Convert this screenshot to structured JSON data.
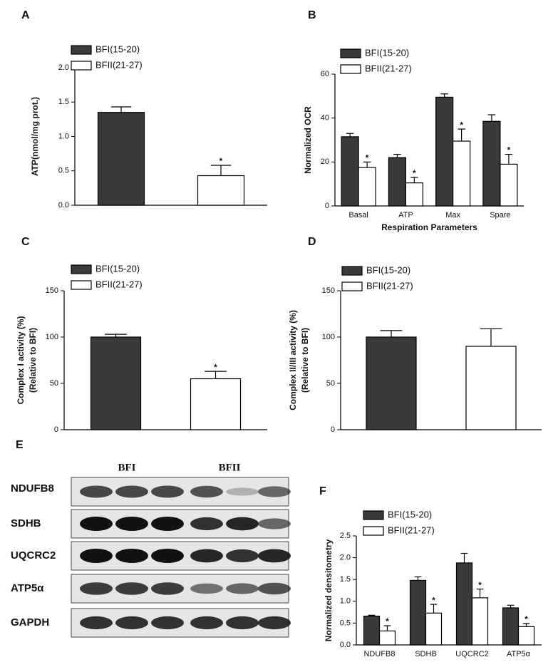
{
  "chart_data": [
    {
      "type": "bar",
      "panel": "A",
      "ylabel": [
        "ATP(nmol/mg prot.)"
      ],
      "categories": [
        null
      ],
      "series": [
        {
          "name": "BFI(15-20)",
          "color": "#3a3a3a",
          "values": [
            1.35
          ],
          "errors": [
            0.08
          ]
        },
        {
          "name": "BFII(21-27)",
          "color": "#ffffff",
          "values": [
            0.43
          ],
          "errors": [
            0.15
          ],
          "stars": [
            "*"
          ]
        }
      ],
      "ylim": [
        0,
        2.0
      ],
      "yticks": [
        {
          "value": 0,
          "label": "0.0"
        },
        0.5,
        {
          "value": 1,
          "label": "1.0"
        },
        1.5,
        {
          "value": 2,
          "label": "2.0"
        }
      ]
    },
    {
      "type": "bar",
      "panel": "B",
      "ylabel": [
        "Normalized OCR"
      ],
      "xlabel": "Respiration Parameters",
      "categories": [
        "Basal",
        "ATP",
        "Max",
        "Spare"
      ],
      "series": [
        {
          "name": "BFI(15-20)",
          "color": "#3a3a3a",
          "values": [
            31.5,
            22,
            49.5,
            38.5
          ],
          "errors": [
            1.5,
            1.5,
            1.5,
            3
          ]
        },
        {
          "name": "BFII(21-27)",
          "color": "#ffffff",
          "values": [
            17.5,
            10.5,
            29.5,
            19
          ],
          "errors": [
            2.5,
            2.5,
            5.5,
            4.5
          ],
          "stars": [
            "*",
            "*",
            "*",
            "*"
          ]
        }
      ],
      "ylim": [
        0,
        60
      ],
      "yticks": [
        0,
        20,
        40,
        60
      ]
    },
    {
      "type": "bar",
      "panel": "C",
      "ylabel": [
        "Complex I activity (%)",
        "(Relative to BFI)"
      ],
      "categories": [
        null
      ],
      "series": [
        {
          "name": "BFI(15-20)",
          "color": "#3a3a3a",
          "values": [
            100
          ],
          "errors": [
            3
          ]
        },
        {
          "name": "BFII(21-27)",
          "color": "#ffffff",
          "values": [
            55
          ],
          "errors": [
            8
          ],
          "stars": [
            "*"
          ]
        }
      ],
      "ylim": [
        0,
        150
      ],
      "yticks": [
        0,
        50,
        100,
        150
      ]
    },
    {
      "type": "bar",
      "panel": "D",
      "ylabel": [
        "Complex II/III activity (%)",
        "(Relative to BFI)"
      ],
      "categories": [
        null
      ],
      "series": [
        {
          "name": "BFI(15-20)",
          "color": "#3a3a3a",
          "values": [
            100
          ],
          "errors": [
            7
          ]
        },
        {
          "name": "BFII(21-27)",
          "color": "#ffffff",
          "values": [
            90
          ],
          "errors": [
            19
          ]
        }
      ],
      "ylim": [
        0,
        150
      ],
      "yticks": [
        0,
        50,
        100,
        150
      ]
    },
    {
      "type": "bar",
      "panel": "F",
      "ylabel": [
        "Normalized densitometry"
      ],
      "categories": [
        "NDUFB8",
        "SDHB",
        "UQCRC2",
        "ATP5α"
      ],
      "series": [
        {
          "name": "BFI(15-20)",
          "color": "#3a3a3a",
          "values": [
            0.66,
            1.48,
            1.88,
            0.85
          ],
          "errors": [
            0.02,
            0.08,
            0.22,
            0.06
          ]
        },
        {
          "name": "BFII(21-27)",
          "color": "#ffffff",
          "values": [
            0.32,
            0.73,
            1.08,
            0.42
          ],
          "errors": [
            0.12,
            0.2,
            0.2,
            0.07
          ],
          "stars": [
            "*",
            "*",
            "*",
            "*"
          ]
        }
      ],
      "ylim": [
        0,
        2.5
      ],
      "yticks": [
        {
          "value": 0,
          "label": "0.0"
        },
        0.5,
        {
          "value": 1,
          "label": "1.0"
        },
        1.5,
        {
          "value": 2,
          "label": "2.0"
        },
        2.5
      ]
    }
  ],
  "blot": {
    "panel": "E",
    "groups": [
      "BFI",
      "BFII"
    ],
    "rows": [
      "NDUFB8",
      "SDHB",
      "UQCRC2",
      "ATP5α",
      "GAPDH"
    ]
  }
}
